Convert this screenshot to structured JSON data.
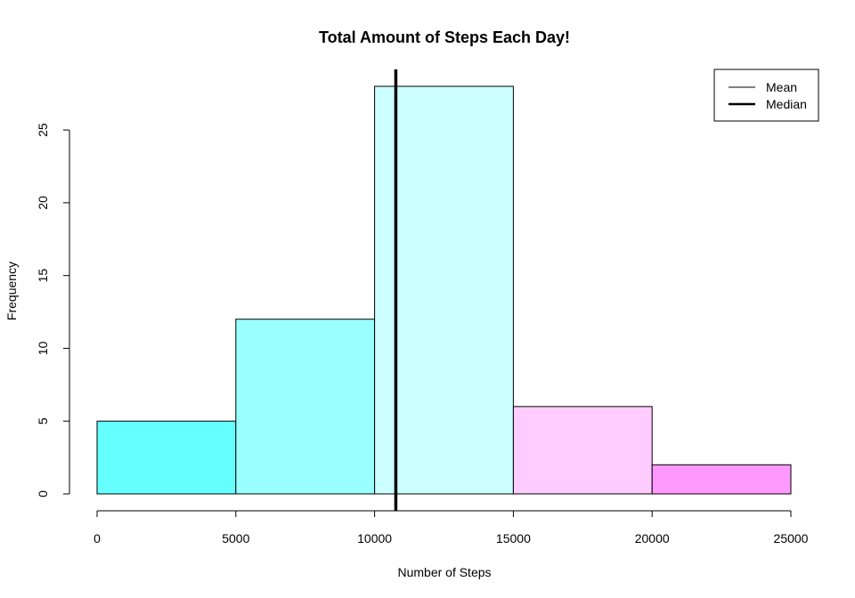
{
  "chart_data": {
    "type": "bar",
    "title": "Total Amount of Steps Each Day!",
    "xlabel": "Number of Steps",
    "ylabel": "Frequency",
    "bins": [
      {
        "from": 0,
        "to": 5000,
        "count": 5,
        "color": "#66ffff"
      },
      {
        "from": 5000,
        "to": 10000,
        "count": 12,
        "color": "#99ffff"
      },
      {
        "from": 10000,
        "to": 15000,
        "count": 28,
        "color": "#ccffff"
      },
      {
        "from": 15000,
        "to": 20000,
        "count": 6,
        "color": "#ffccff"
      },
      {
        "from": 20000,
        "to": 25000,
        "count": 2,
        "color": "#ff99ff"
      }
    ],
    "x_ticks": [
      0,
      5000,
      10000,
      15000,
      20000,
      25000
    ],
    "x_tick_labels": [
      "0",
      "5000",
      "10000",
      "15000",
      "20000",
      "25000"
    ],
    "y_ticks": [
      0,
      5,
      10,
      15,
      20,
      25
    ],
    "y_tick_labels": [
      "0",
      "5",
      "10",
      "15",
      "20",
      "25"
    ],
    "xlim": [
      0,
      25000
    ],
    "ylim": [
      0,
      28
    ],
    "mean": 10766,
    "median": 10765,
    "mean_color": "#555555",
    "median_color": "#000000",
    "legend": {
      "placement": "top-right",
      "entries": [
        {
          "label": "Mean",
          "color": "#555555"
        },
        {
          "label": "Median",
          "color": "#000000"
        }
      ]
    },
    "grid": false
  }
}
